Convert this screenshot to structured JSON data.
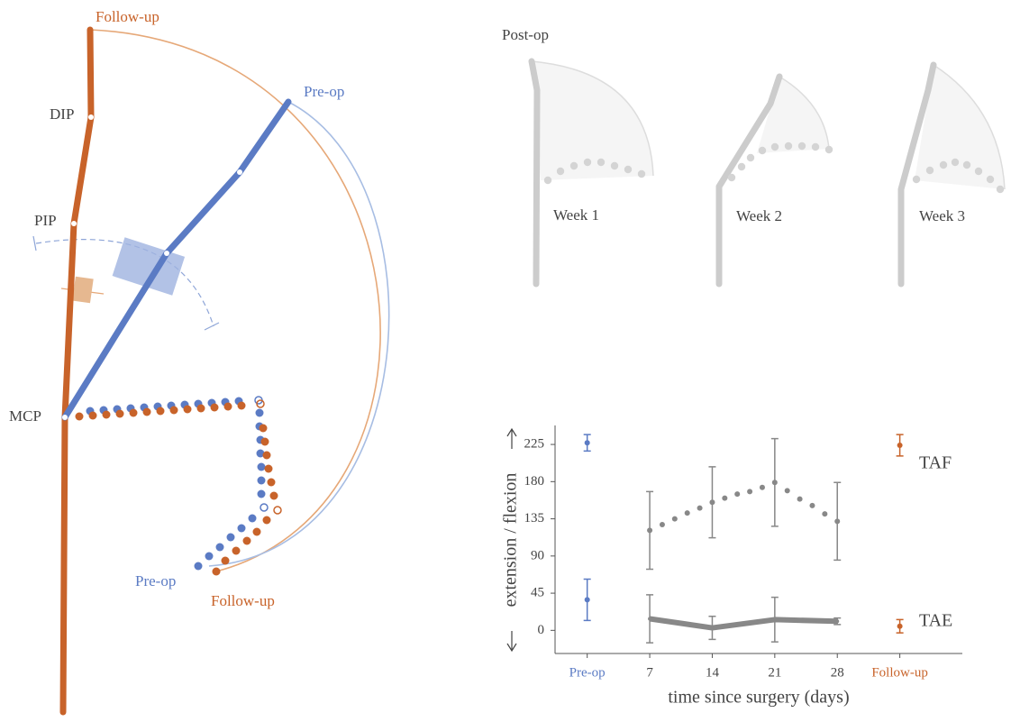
{
  "diagram": {
    "top_label": "Follow-up",
    "joints": [
      "DIP",
      "PIP",
      "MCP"
    ],
    "preop_top": "Pre-op",
    "preop_bottom": "Pre-op",
    "followup_bottom": "Follow-up"
  },
  "postop": {
    "title": "Post-op",
    "weeks": [
      "Week 1",
      "Week 2",
      "Week 3"
    ]
  },
  "chart_data": {
    "type": "errorbar",
    "xlabel": "time since surgery (days)",
    "ylabel": "extension / flexion",
    "xlim": [
      -3.6,
      42
    ],
    "ylim": [
      -28,
      248
    ],
    "xticks": [
      {
        "value": 0,
        "label": "Pre-op"
      },
      7,
      14,
      21,
      28,
      {
        "value": 35,
        "label": "Follow-up"
      }
    ],
    "yticks": [
      0,
      45,
      90,
      135,
      180,
      225
    ],
    "series": [
      {
        "name": "TAF",
        "color": "#888888",
        "style": "errorbar",
        "x": [
          7,
          14,
          21,
          28
        ],
        "values": [
          121,
          155,
          179,
          132
        ],
        "errors": [
          47,
          43,
          53,
          47
        ]
      },
      {
        "color": "#888888",
        "style": "dots",
        "x": [
          8.4,
          9.8,
          11.2,
          12.6,
          15.4,
          16.8,
          18.2,
          19.6,
          22.4,
          23.8,
          25.2,
          26.6
        ],
        "values": [
          128,
          135,
          142,
          148,
          160,
          165,
          168,
          173,
          169,
          159,
          151,
          141
        ]
      },
      {
        "name": "TAE",
        "color": "#888888",
        "style": "line",
        "x": [
          7,
          14,
          21,
          28
        ],
        "values": [
          14,
          3,
          13,
          11
        ],
        "errors": [
          29,
          14,
          27,
          4
        ]
      },
      {
        "color": "#5b7bc4",
        "style": "errorbar",
        "x": [
          0,
          0
        ],
        "values": [
          227,
          37
        ],
        "errors": [
          10,
          25
        ]
      },
      {
        "color": "#c8632a",
        "style": "errorbar",
        "x": [
          35,
          35
        ],
        "values": [
          224,
          5
        ],
        "errors": [
          13,
          8
        ]
      }
    ]
  }
}
